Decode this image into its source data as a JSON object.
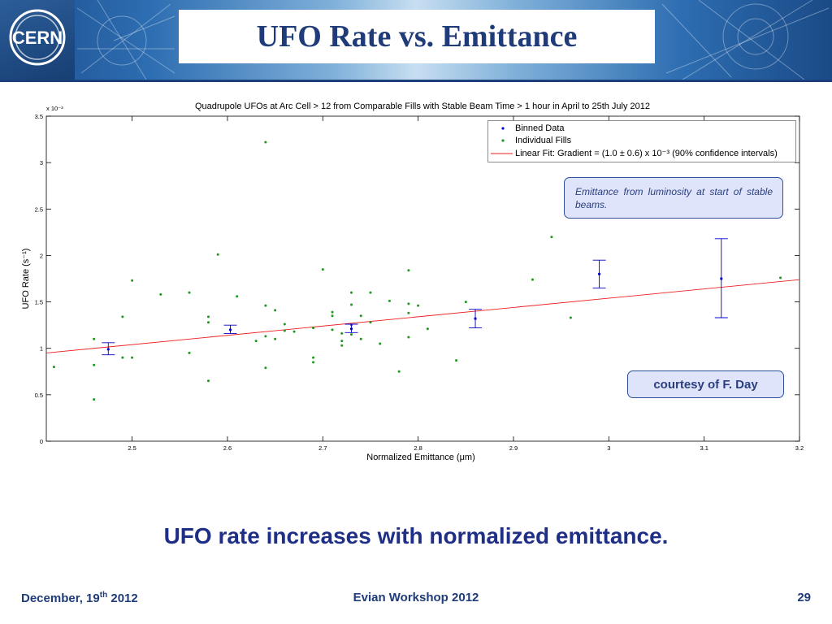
{
  "slide": {
    "title": "UFO Rate vs. Emittance",
    "logo_text": "CERN",
    "conclusion": "UFO rate increases with normalized emittance.",
    "footer": {
      "date_prefix": "December, 19",
      "date_suffix": "th",
      "date_year": " 2012",
      "event": "Evian Workshop 2012",
      "page": "29"
    }
  },
  "callouts": {
    "emittance_note": "Emittance from luminosity at start of stable beams.",
    "courtesy": "courtesy of F. Day"
  },
  "colors": {
    "binned": "#0000cc",
    "fills": "#1a9a1a",
    "fit": "#ee2020",
    "title": "#1f3b78",
    "conclusion": "#1f2f86"
  },
  "chart_data": {
    "type": "scatter",
    "title": "Quadrupole UFOs at Arc Cell > 12 from Comparable Fills with Stable Beam Time > 1 hour in April to 25th July 2012",
    "xlabel": "Normalized Emittance (μm)",
    "ylabel": "UFO Rate (s⁻¹)",
    "y_exponent": "x 10⁻³",
    "xlim": [
      2.41,
      3.2
    ],
    "ylim": [
      0,
      3.5
    ],
    "x_ticks": [
      "2.5",
      "2.6",
      "2.7",
      "2.8",
      "2.9",
      "3",
      "3.1",
      "3.2"
    ],
    "y_ticks": [
      "0",
      "0.5",
      "1",
      "1.5",
      "2",
      "2.5",
      "3",
      "3.5"
    ],
    "grid": false,
    "legend_position": "top-right",
    "legend": [
      {
        "name": "Binned Data",
        "marker": "dot"
      },
      {
        "name": "Individual Fills",
        "marker": "dot"
      },
      {
        "name": "Linear Fit: Gradient = (1.0 ± 0.6) x 10⁻³ (90% confidence intervals)",
        "marker": "line"
      }
    ],
    "series": [
      {
        "name": "Individual Fills",
        "points": [
          [
            2.418,
            0.8
          ],
          [
            2.46,
            1.1
          ],
          [
            2.46,
            0.82
          ],
          [
            2.46,
            0.45
          ],
          [
            2.49,
            1.34
          ],
          [
            2.49,
            0.9
          ],
          [
            2.5,
            1.73
          ],
          [
            2.5,
            0.9
          ],
          [
            2.53,
            1.58
          ],
          [
            2.56,
            1.6
          ],
          [
            2.56,
            0.95
          ],
          [
            2.58,
            1.34
          ],
          [
            2.58,
            1.28
          ],
          [
            2.58,
            0.65
          ],
          [
            2.59,
            2.01
          ],
          [
            2.61,
            1.56
          ],
          [
            2.63,
            1.08
          ],
          [
            2.64,
            3.22
          ],
          [
            2.64,
            1.46
          ],
          [
            2.64,
            1.13
          ],
          [
            2.64,
            0.79
          ],
          [
            2.65,
            1.41
          ],
          [
            2.65,
            1.1
          ],
          [
            2.66,
            1.26
          ],
          [
            2.66,
            1.19
          ],
          [
            2.67,
            1.18
          ],
          [
            2.69,
            1.22
          ],
          [
            2.69,
            0.9
          ],
          [
            2.69,
            0.85
          ],
          [
            2.7,
            1.85
          ],
          [
            2.71,
            1.39
          ],
          [
            2.71,
            1.35
          ],
          [
            2.71,
            1.2
          ],
          [
            2.72,
            1.16
          ],
          [
            2.72,
            1.08
          ],
          [
            2.72,
            1.03
          ],
          [
            2.73,
            1.6
          ],
          [
            2.73,
            1.47
          ],
          [
            2.73,
            1.25
          ],
          [
            2.73,
            1.15
          ],
          [
            2.74,
            1.35
          ],
          [
            2.74,
            1.1
          ],
          [
            2.75,
            1.6
          ],
          [
            2.75,
            1.28
          ],
          [
            2.76,
            1.05
          ],
          [
            2.77,
            1.51
          ],
          [
            2.78,
            0.75
          ],
          [
            2.79,
            1.84
          ],
          [
            2.79,
            1.48
          ],
          [
            2.79,
            1.38
          ],
          [
            2.79,
            1.12
          ],
          [
            2.8,
            1.46
          ],
          [
            2.81,
            1.21
          ],
          [
            2.84,
            0.87
          ],
          [
            2.85,
            1.5
          ],
          [
            2.92,
            1.74
          ],
          [
            2.94,
            2.2
          ],
          [
            2.96,
            1.33
          ],
          [
            3.18,
            1.76
          ]
        ]
      },
      {
        "name": "Binned Data",
        "points": [
          {
            "x": 2.475,
            "y": 0.99,
            "lo": 0.93,
            "hi": 1.06
          },
          {
            "x": 2.603,
            "y": 1.2,
            "lo": 1.16,
            "hi": 1.25
          },
          {
            "x": 2.73,
            "y": 1.21,
            "lo": 1.17,
            "hi": 1.26
          },
          {
            "x": 2.86,
            "y": 1.32,
            "lo": 1.22,
            "hi": 1.42
          },
          {
            "x": 2.99,
            "y": 1.8,
            "lo": 1.65,
            "hi": 1.95
          },
          {
            "x": 3.118,
            "y": 1.75,
            "lo": 1.33,
            "hi": 2.18
          }
        ]
      },
      {
        "name": "Linear Fit",
        "points": [
          [
            2.41,
            0.95
          ],
          [
            3.2,
            1.74
          ]
        ]
      }
    ]
  }
}
